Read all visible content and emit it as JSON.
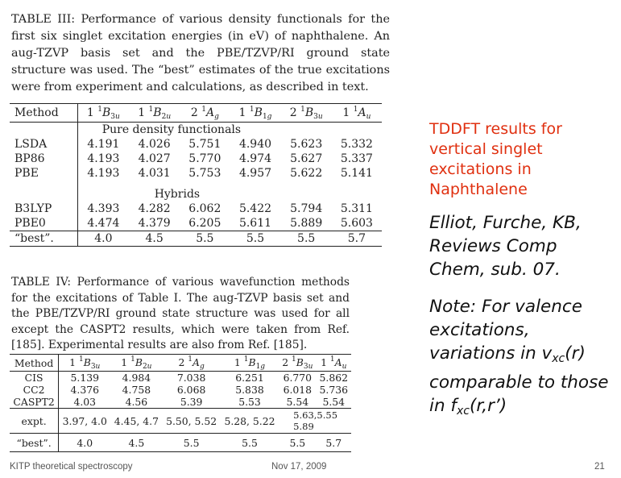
{
  "table3": {
    "caption": "TABLE III: Performance of various density functionals for the first six singlet excitation energies (in eV) of naphthalene. An aug-TZVP basis set and the PBE/TZVP/RI ground state structure was used. The “best” estimates of the true excitations were from experiment and calculations, as described in text.",
    "method_header": "Method",
    "columns": [
      "1 1B3u",
      "1 1B2u",
      "2 1Ag",
      "1 1B1g",
      "2 1B3u",
      "1 1Au"
    ],
    "section_pure": "Pure density functionals",
    "section_hybrids": "Hybrids",
    "rows_pure": [
      {
        "method": "LSDA",
        "values": [
          "4.191",
          "4.026",
          "5.751",
          "4.940",
          "5.623",
          "5.332"
        ]
      },
      {
        "method": "BP86",
        "values": [
          "4.193",
          "4.027",
          "5.770",
          "4.974",
          "5.627",
          "5.337"
        ]
      },
      {
        "method": "PBE",
        "values": [
          "4.193",
          "4.031",
          "5.753",
          "4.957",
          "5.622",
          "5.141"
        ]
      }
    ],
    "rows_hybrid": [
      {
        "method": "B3LYP",
        "values": [
          "4.393",
          "4.282",
          "6.062",
          "5.422",
          "5.794",
          "5.311"
        ]
      },
      {
        "method": "PBE0",
        "values": [
          "4.474",
          "4.379",
          "6.205",
          "5.611",
          "5.889",
          "5.603"
        ]
      }
    ],
    "best": {
      "method": "“best”.",
      "values": [
        "4.0",
        "4.5",
        "5.5",
        "5.5",
        "5.5",
        "5.7"
      ]
    }
  },
  "table4": {
    "caption": "TABLE IV: Performance of various wavefunction methods for the excitations of Table I. The aug-TZVP basis set and the PBE/TZVP/RI ground state structure was used for all except the CASPT2 results, which were taken from Ref. [185]. Experimental results are also from Ref. [185].",
    "method_header": "Method",
    "rows": [
      {
        "method": "CIS",
        "values": [
          "5.139",
          "4.984",
          "7.038",
          "6.251",
          "6.770",
          "5.862"
        ]
      },
      {
        "method": "CC2",
        "values": [
          "4.376",
          "4.758",
          "6.068",
          "5.838",
          "6.018",
          "5.736"
        ]
      },
      {
        "method": "CASPT2",
        "values": [
          "4.03",
          "4.56",
          "5.39",
          "5.53",
          "5.54",
          "5.54"
        ]
      }
    ],
    "expt": {
      "method": "expt.",
      "values": [
        "3.97, 4.0",
        "4.45, 4.7",
        "5.50, 5.52",
        "5.28, 5.22",
        "5.63,5.55",
        "5.89"
      ]
    },
    "best": {
      "method": "“best”.",
      "values": [
        "4.0",
        "4.5",
        "5.5",
        "5.5",
        "5.5",
        "5.7"
      ]
    }
  },
  "notes": {
    "tddft": "TDDFT results for vertical singlet excitations in Naphthalene",
    "citation": "Elliot, Furche, KB, Reviews Comp Chem, sub. 07.",
    "note_prefix": "Note:  For valence excitations, variations in v",
    "note_sub1": "xc",
    "note_mid": "(r) comparable to those in f",
    "note_sub2": "xc",
    "note_suffix": "(r,r’)"
  },
  "footer": {
    "left": "KITP theoretical spectroscopy",
    "center": "Nov 17, 2009",
    "page": "21"
  },
  "colors": {
    "tddft_text": "#e03010"
  }
}
